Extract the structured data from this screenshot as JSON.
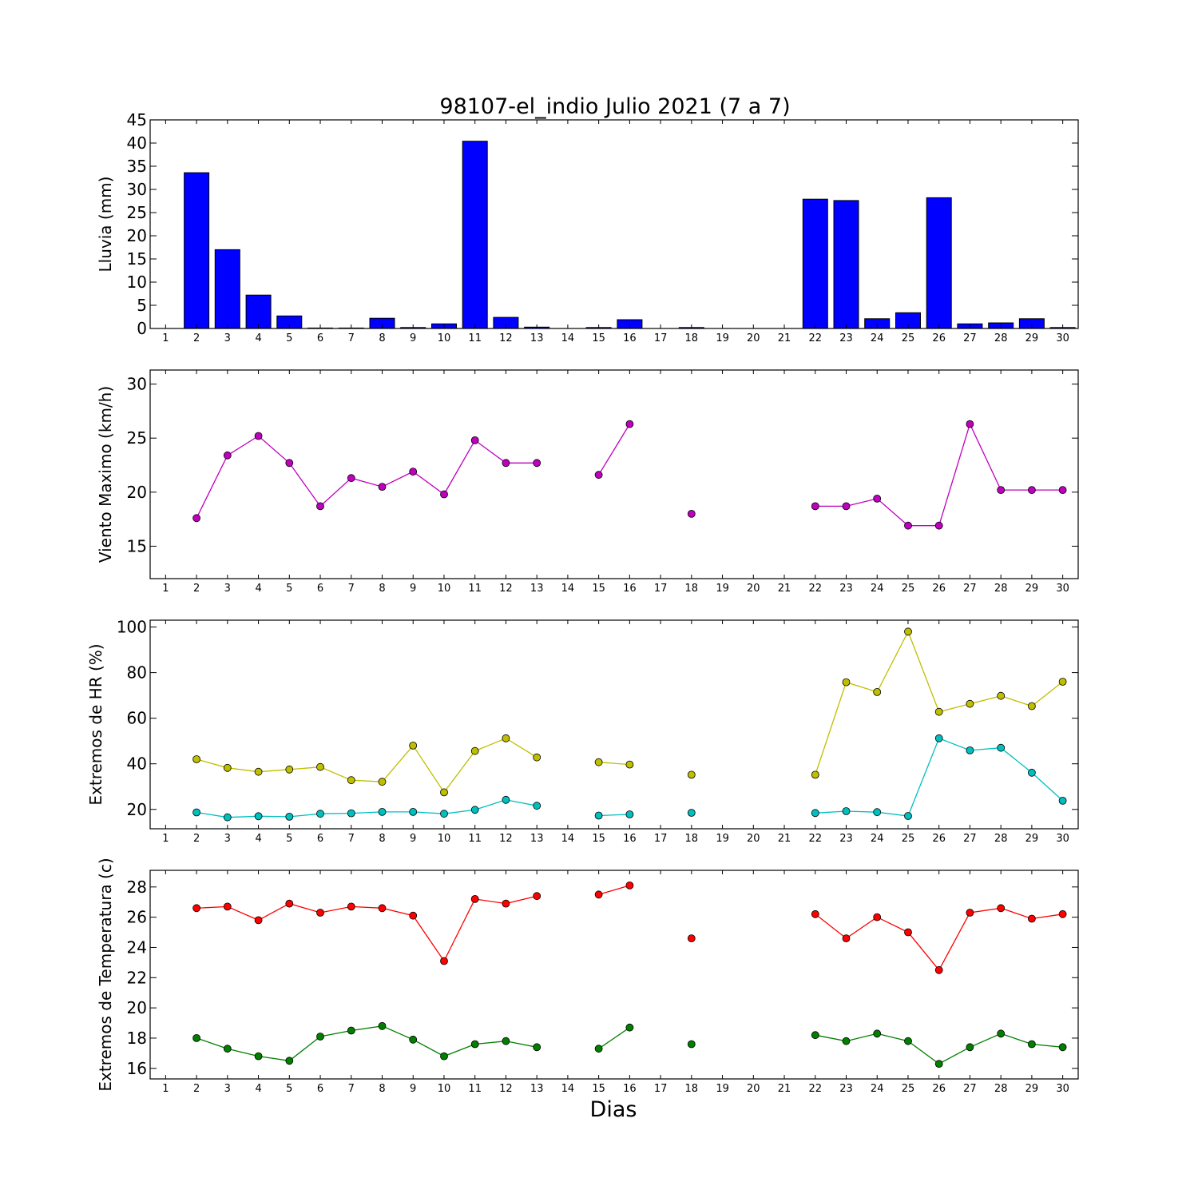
{
  "figure": {
    "title": "98107-el_indio Julio 2021  (7 a 7)",
    "xlabel": "Dias"
  },
  "chart_data": [
    {
      "type": "bar",
      "ylabel": "Lluvia (mm)",
      "x_ticks": [
        1,
        2,
        3,
        4,
        5,
        6,
        7,
        8,
        9,
        10,
        11,
        12,
        13,
        14,
        15,
        16,
        17,
        18,
        19,
        20,
        21,
        22,
        23,
        24,
        25,
        26,
        27,
        28,
        29,
        30
      ],
      "xlim": [
        0.5,
        30.5
      ],
      "ylim": [
        0,
        45
      ],
      "y_ticks": [
        0,
        5,
        10,
        15,
        20,
        25,
        30,
        35,
        40,
        45
      ],
      "grid": false,
      "series": [
        {
          "color": "#0000ff",
          "points": [
            [
              2,
              33.6
            ],
            [
              3,
              17.0
            ],
            [
              4,
              7.2
            ],
            [
              5,
              2.7
            ],
            [
              6,
              0.1
            ],
            [
              7,
              0.1
            ],
            [
              8,
              2.2
            ],
            [
              9,
              0.2
            ],
            [
              10,
              1.0
            ],
            [
              11,
              40.4
            ],
            [
              12,
              2.4
            ],
            [
              13,
              0.3
            ],
            [
              15,
              0.2
            ],
            [
              16,
              1.9
            ],
            [
              18,
              0.2
            ],
            [
              22,
              27.9
            ],
            [
              23,
              27.6
            ],
            [
              24,
              2.1
            ],
            [
              25,
              3.4
            ],
            [
              26,
              28.2
            ],
            [
              27,
              1.0
            ],
            [
              28,
              1.2
            ],
            [
              29,
              2.1
            ],
            [
              30,
              0.2
            ]
          ]
        }
      ]
    },
    {
      "type": "line",
      "ylabel": "Viento Maximo (km/h)",
      "x_ticks": [
        1,
        2,
        3,
        4,
        5,
        6,
        7,
        8,
        9,
        10,
        11,
        12,
        13,
        14,
        15,
        16,
        17,
        18,
        19,
        20,
        21,
        22,
        23,
        24,
        25,
        26,
        27,
        28,
        29,
        30
      ],
      "xlim": [
        0.5,
        30.5
      ],
      "ylim": [
        12,
        31.3
      ],
      "y_ticks": [
        15,
        20,
        25,
        30
      ],
      "grid": false,
      "series": [
        {
          "color": "#bf00bf",
          "points": [
            [
              2,
              17.6
            ],
            [
              3,
              23.4
            ],
            [
              4,
              25.2
            ],
            [
              5,
              22.7
            ],
            [
              6,
              18.7
            ],
            [
              7,
              21.3
            ],
            [
              8,
              20.5
            ],
            [
              9,
              21.9
            ],
            [
              10,
              19.8
            ],
            [
              11,
              24.8
            ],
            [
              12,
              22.7
            ],
            [
              13,
              22.7
            ],
            [
              14,
              null
            ],
            [
              15,
              21.6
            ],
            [
              16,
              26.3
            ],
            [
              17,
              null
            ],
            [
              18,
              18.0
            ],
            [
              19,
              null
            ],
            [
              22,
              18.7
            ],
            [
              23,
              18.7
            ],
            [
              24,
              19.4
            ],
            [
              25,
              16.9
            ],
            [
              26,
              16.9
            ],
            [
              27,
              26.3
            ],
            [
              28,
              20.2
            ],
            [
              29,
              20.2
            ],
            [
              30,
              20.2
            ]
          ]
        }
      ]
    },
    {
      "type": "line",
      "ylabel": "Extremos de HR (%)",
      "x_ticks": [
        1,
        2,
        3,
        4,
        5,
        6,
        7,
        8,
        9,
        10,
        11,
        12,
        13,
        14,
        15,
        16,
        17,
        18,
        19,
        20,
        21,
        22,
        23,
        24,
        25,
        26,
        27,
        28,
        29,
        30
      ],
      "xlim": [
        0.5,
        30.5
      ],
      "ylim": [
        11.5,
        103
      ],
      "y_ticks": [
        20,
        40,
        60,
        80,
        100
      ],
      "grid": false,
      "series": [
        {
          "color": "#bfbf00",
          "points": [
            [
              2,
              42
            ],
            [
              3,
              38.2
            ],
            [
              4,
              36.5
            ],
            [
              5,
              37.5
            ],
            [
              6,
              38.6
            ],
            [
              7,
              32.8
            ],
            [
              8,
              32.1
            ],
            [
              9,
              48
            ],
            [
              10,
              27.5
            ],
            [
              11,
              45.6
            ],
            [
              12,
              51.2
            ],
            [
              13,
              42.8
            ],
            [
              14,
              null
            ],
            [
              15,
              40.7
            ],
            [
              16,
              39.7
            ],
            [
              17,
              null
            ],
            [
              18,
              35.2
            ],
            [
              19,
              null
            ],
            [
              22,
              35.2
            ],
            [
              23,
              75.8
            ],
            [
              24,
              71.5
            ],
            [
              25,
              98
            ],
            [
              26,
              62.8
            ],
            [
              27,
              66.3
            ],
            [
              28,
              69.8
            ],
            [
              29,
              65.3
            ],
            [
              30,
              76
            ]
          ]
        },
        {
          "color": "#00bfbf",
          "points": [
            [
              2,
              18.7
            ],
            [
              3,
              16.5
            ],
            [
              4,
              17.0
            ],
            [
              5,
              16.8
            ],
            [
              6,
              18.1
            ],
            [
              7,
              18.3
            ],
            [
              8,
              18.9
            ],
            [
              9,
              18.9
            ],
            [
              10,
              18.1
            ],
            [
              11,
              19.8
            ],
            [
              12,
              24.2
            ],
            [
              13,
              21.6
            ],
            [
              14,
              null
            ],
            [
              15,
              17.3
            ],
            [
              16,
              17.8
            ],
            [
              17,
              null
            ],
            [
              18,
              18.5
            ],
            [
              19,
              null
            ],
            [
              22,
              18.4
            ],
            [
              23,
              19.2
            ],
            [
              24,
              18.8
            ],
            [
              25,
              17.1
            ],
            [
              26,
              51.2
            ],
            [
              27,
              45.9
            ],
            [
              28,
              47.0
            ],
            [
              29,
              36.1
            ],
            [
              30,
              23.8
            ]
          ]
        }
      ]
    },
    {
      "type": "line",
      "ylabel": "Extremos de Temperatura (c)",
      "x_ticks": [
        1,
        2,
        3,
        4,
        5,
        6,
        7,
        8,
        9,
        10,
        11,
        12,
        13,
        14,
        15,
        16,
        17,
        18,
        19,
        20,
        21,
        22,
        23,
        24,
        25,
        26,
        27,
        28,
        29,
        30
      ],
      "xlim": [
        0.5,
        30.5
      ],
      "ylim": [
        15.3,
        29.1
      ],
      "y_ticks": [
        16,
        18,
        20,
        22,
        24,
        26,
        28
      ],
      "grid": false,
      "series": [
        {
          "color": "#ff0000",
          "points": [
            [
              2,
              26.6
            ],
            [
              3,
              26.7
            ],
            [
              4,
              25.8
            ],
            [
              5,
              26.9
            ],
            [
              6,
              26.3
            ],
            [
              7,
              26.7
            ],
            [
              8,
              26.6
            ],
            [
              9,
              26.1
            ],
            [
              10,
              23.1
            ],
            [
              11,
              27.2
            ],
            [
              12,
              26.9
            ],
            [
              13,
              27.4
            ],
            [
              14,
              null
            ],
            [
              15,
              27.5
            ],
            [
              16,
              28.1
            ],
            [
              17,
              null
            ],
            [
              18,
              24.6
            ],
            [
              19,
              null
            ],
            [
              22,
              26.2
            ],
            [
              23,
              24.6
            ],
            [
              24,
              26.0
            ],
            [
              25,
              25.0
            ],
            [
              26,
              22.5
            ],
            [
              27,
              26.3
            ],
            [
              28,
              26.6
            ],
            [
              29,
              25.9
            ],
            [
              30,
              26.2
            ]
          ]
        },
        {
          "color": "#007f00",
          "points": [
            [
              2,
              18.0
            ],
            [
              3,
              17.3
            ],
            [
              4,
              16.8
            ],
            [
              5,
              16.5
            ],
            [
              6,
              18.1
            ],
            [
              7,
              18.5
            ],
            [
              8,
              18.8
            ],
            [
              9,
              17.9
            ],
            [
              10,
              16.8
            ],
            [
              11,
              17.6
            ],
            [
              12,
              17.8
            ],
            [
              13,
              17.4
            ],
            [
              14,
              null
            ],
            [
              15,
              17.3
            ],
            [
              16,
              18.7
            ],
            [
              17,
              null
            ],
            [
              18,
              17.6
            ],
            [
              19,
              null
            ],
            [
              22,
              18.2
            ],
            [
              23,
              17.8
            ],
            [
              24,
              18.3
            ],
            [
              25,
              17.8
            ],
            [
              26,
              16.3
            ],
            [
              27,
              17.4
            ],
            [
              28,
              18.3
            ],
            [
              29,
              17.6
            ],
            [
              30,
              17.4
            ]
          ]
        }
      ]
    }
  ]
}
